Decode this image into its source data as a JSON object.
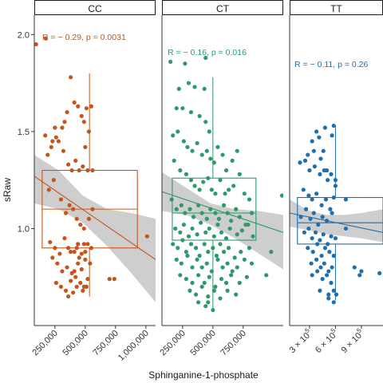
{
  "chart_data": {
    "type": "scatter",
    "ylabel": "sRaw",
    "xlabel": "Sphinganine-1-phosphate",
    "ylim": [
      0.5,
      2.1
    ],
    "yticks": [
      1.0,
      1.5,
      2.0
    ],
    "ytick_labels": [
      "1.0",
      "1.5",
      "2.0"
    ],
    "grid": false,
    "panels": [
      {
        "strip": "CC",
        "color": "#c4561d",
        "annotation": "R = − 0.29, p = 0.0031",
        "xlim": [
          80000,
          1080000
        ],
        "xticks": [
          250000,
          500000,
          750000,
          1000000
        ],
        "xtick_labels": [
          "250,000",
          "500,000",
          "750,000",
          "1,000,000"
        ],
        "box": {
          "x_min": 145000,
          "x_max": 930000,
          "q1": 0.9,
          "median": 1.1,
          "q3": 1.3,
          "whisker_low": 0.65,
          "whisker_high": 1.8,
          "whisker_x": 535000
        },
        "fit": {
          "x": [
            80000,
            1080000
          ],
          "y": [
            1.27,
            0.84
          ]
        },
        "band": {
          "x": [
            80000,
            280000,
            480000,
            680000,
            880000,
            1080000
          ],
          "lower": [
            1.13,
            1.1,
            1.03,
            0.91,
            0.77,
            0.62
          ],
          "upper": [
            1.38,
            1.3,
            1.17,
            1.1,
            1.08,
            1.05
          ]
        },
        "points": {
          "x": [
            95000,
            175000,
            220000,
            260000,
            310000,
            330000,
            350000,
            380000,
            410000,
            440000,
            470000,
            490000,
            510000,
            530000,
            550000,
            170000,
            190000,
            230000,
            250000,
            280000,
            320000,
            360000,
            390000,
            420000,
            450000,
            480000,
            500000,
            520000,
            560000,
            200000,
            240000,
            300000,
            340000,
            370000,
            400000,
            430000,
            460000,
            490000,
            530000,
            560000,
            210000,
            250000,
            290000,
            330000,
            360000,
            380000,
            410000,
            430000,
            450000,
            470000,
            500000,
            520000,
            550000,
            700000,
            740000,
            230000,
            270000,
            310000,
            350000,
            390000,
            420000,
            440000,
            470000,
            500000,
            540000,
            1010000,
            260000,
            300000,
            340000,
            380000,
            410000,
            460000,
            490000,
            520000,
            360000,
            400000,
            430000,
            480000,
            510000,
            440000,
            490000
          ],
          "y": [
            1.95,
            1.98,
            1.42,
            1.47,
            1.52,
            1.55,
            1.6,
            1.78,
            1.65,
            1.63,
            1.58,
            1.55,
            1.62,
            1.5,
            1.63,
            1.48,
            1.38,
            1.45,
            1.52,
            1.45,
            1.4,
            1.33,
            1.3,
            1.35,
            1.3,
            1.32,
            1.42,
            1.3,
            1.3,
            1.2,
            1.25,
            1.15,
            1.08,
            1.12,
            1.1,
            1.05,
            1.02,
            1.0,
            1.05,
            1.1,
            0.93,
            0.9,
            0.87,
            0.95,
            0.9,
            0.88,
            0.88,
            0.9,
            0.85,
            0.87,
            0.88,
            0.92,
            0.9,
            0.74,
            0.74,
            0.85,
            0.82,
            0.78,
            0.8,
            0.77,
            0.75,
            0.82,
            0.79,
            0.84,
            0.82,
            0.96,
            0.72,
            0.7,
            0.68,
            0.73,
            0.78,
            0.72,
            0.7,
            0.74,
            0.65,
            0.67,
            0.7,
            0.68,
            0.7,
            0.92,
            0.92
          ]
        }
      },
      {
        "strip": "CT",
        "color": "#2e9a6b",
        "annotation": "R = − 0.16, p = 0.016",
        "xlim": [
          80000,
          1080000
        ],
        "xticks": [
          250000,
          500000,
          750000
        ],
        "xtick_labels": [
          "250,000",
          "500,000",
          "750,000"
        ],
        "box": {
          "x_min": 165000,
          "x_max": 855000,
          "q1": 0.94,
          "median": 1.08,
          "q3": 1.26,
          "whisker_low": 0.58,
          "whisker_high": 1.78,
          "whisker_x": 500000
        },
        "fit": {
          "x": [
            80000,
            1080000
          ],
          "y": [
            1.19,
            0.98
          ]
        },
        "band": {
          "x": [
            80000,
            280000,
            480000,
            680000,
            880000,
            1080000
          ],
          "lower": [
            1.09,
            1.07,
            1.02,
            0.95,
            0.87,
            0.79
          ],
          "upper": [
            1.29,
            1.21,
            1.13,
            1.1,
            1.09,
            1.07
          ]
        },
        "points": {
          "x": [
            440000,
            270000,
            150000,
            220000,
            300000,
            350000,
            430000,
            200000,
            250000,
            320000,
            390000,
            440000,
            470000,
            170000,
            210000,
            260000,
            290000,
            330000,
            370000,
            410000,
            450000,
            480000,
            510000,
            540000,
            580000,
            610000,
            660000,
            700000,
            720000,
            180000,
            230000,
            280000,
            320000,
            350000,
            390000,
            420000,
            460000,
            490000,
            520000,
            560000,
            600000,
            630000,
            670000,
            760000,
            800000,
            160000,
            200000,
            240000,
            270000,
            310000,
            340000,
            380000,
            410000,
            450000,
            480000,
            520000,
            550000,
            590000,
            620000,
            650000,
            690000,
            720000,
            770000,
            820000,
            1070000,
            190000,
            230000,
            260000,
            300000,
            330000,
            370000,
            400000,
            440000,
            470000,
            510000,
            540000,
            570000,
            610000,
            640000,
            700000,
            740000,
            790000,
            830000,
            170000,
            210000,
            250000,
            280000,
            320000,
            360000,
            390000,
            430000,
            460000,
            500000,
            530000,
            560000,
            590000,
            630000,
            680000,
            730000,
            800000,
            980000,
            200000,
            240000,
            290000,
            330000,
            370000,
            410000,
            450000,
            490000,
            540000,
            580000,
            620000,
            660000,
            700000,
            760000,
            820000,
            230000,
            280000,
            330000,
            380000,
            430000,
            470000,
            520000,
            570000,
            610000,
            650000,
            720000,
            780000,
            940000,
            310000,
            360000,
            410000,
            460000,
            510000,
            560000,
            620000,
            690000,
            380000,
            440000,
            500000,
            460000
          ],
          "y": [
            1.88,
            1.85,
            1.86,
            1.72,
            1.75,
            1.73,
            1.72,
            1.62,
            1.62,
            1.6,
            1.58,
            1.55,
            1.5,
            1.48,
            1.5,
            1.45,
            1.42,
            1.4,
            1.44,
            1.38,
            1.4,
            1.36,
            1.34,
            1.42,
            1.38,
            1.3,
            1.35,
            1.4,
            1.28,
            1.35,
            1.3,
            1.28,
            1.25,
            1.22,
            1.2,
            1.24,
            1.26,
            1.2,
            1.18,
            1.25,
            1.18,
            1.2,
            1.22,
            1.18,
            1.15,
            1.15,
            1.1,
            1.12,
            1.08,
            1.1,
            1.06,
            1.12,
            1.08,
            1.05,
            1.1,
            1.08,
            1.05,
            1.12,
            1.08,
            1.04,
            1.1,
            1.06,
            1.02,
            1.08,
            1.17,
            1.0,
            0.98,
            1.02,
            0.96,
            1.0,
            0.97,
            1.03,
            0.98,
            1.0,
            0.96,
            1.02,
            0.98,
            0.95,
            1.0,
            0.97,
            0.99,
            1.02,
            0.96,
            0.92,
            0.9,
            0.94,
            0.88,
            0.92,
            0.9,
            0.86,
            0.92,
            0.88,
            0.9,
            0.86,
            0.92,
            0.88,
            0.9,
            0.85,
            0.88,
            0.9,
            0.88,
            0.84,
            0.82,
            0.86,
            0.8,
            0.84,
            0.8,
            0.82,
            0.78,
            0.84,
            0.8,
            0.82,
            0.78,
            0.8,
            0.84,
            0.82,
            0.76,
            0.74,
            0.72,
            0.76,
            0.72,
            0.75,
            0.7,
            0.74,
            0.72,
            0.76,
            0.72,
            0.75,
            0.76,
            0.68,
            0.66,
            0.7,
            0.65,
            0.68,
            0.64,
            0.68,
            0.66,
            0.62,
            0.6,
            0.58,
            0.62
          ]
        }
      },
      {
        "strip": "TT",
        "color": "#1f6fae",
        "annotation": "R = − 0.11, p = 0.26",
        "xlim": [
          70000,
          1150000
        ],
        "xticks": [
          300000,
          600000,
          900000
        ],
        "xtick_labels": [
          "3 × 10",
          "6 × 10",
          "9 × 10"
        ],
        "xtick_exponent": "5",
        "box": {
          "x_min": 160000,
          "x_max": 1150000,
          "q1": 0.92,
          "median": 1.03,
          "q3": 1.16,
          "whisker_low": 0.63,
          "whisker_high": 1.53,
          "whisker_x": 600000
        },
        "fit": {
          "x": [
            70000,
            1150000
          ],
          "y": [
            1.08,
            0.98
          ]
        },
        "band": {
          "x": [
            70000,
            300000,
            500000,
            700000,
            900000,
            1150000
          ],
          "lower": [
            1.01,
            0.99,
            0.97,
            0.96,
            0.95,
            0.93
          ],
          "upper": [
            1.15,
            1.09,
            1.07,
            1.07,
            1.08,
            1.1
          ]
        },
        "points": {
          "x": [
            380000,
            480000,
            560000,
            580000,
            330000,
            410000,
            460000,
            280000,
            350000,
            430000,
            500000,
            600000,
            190000,
            250000,
            300000,
            360000,
            420000,
            470000,
            510000,
            550000,
            600000,
            230000,
            290000,
            330000,
            380000,
            440000,
            490000,
            540000,
            580000,
            200000,
            260000,
            310000,
            350000,
            400000,
            450000,
            500000,
            560000,
            720000,
            240000,
            290000,
            330000,
            370000,
            420000,
            460000,
            510000,
            550000,
            600000,
            280000,
            340000,
            390000,
            440000,
            480000,
            530000,
            580000,
            320000,
            380000,
            430000,
            470000,
            520000,
            560000,
            330000,
            390000,
            450000,
            500000,
            550000,
            420000,
            520000,
            580000,
            610000,
            720000,
            820000,
            880000,
            900000,
            1110000,
            520000,
            580000
          ],
          "y": [
            1.5,
            1.52,
            1.48,
            1.53,
            1.45,
            1.47,
            1.4,
            1.38,
            1.4,
            1.36,
            1.3,
            1.25,
            1.34,
            1.35,
            1.3,
            1.32,
            1.28,
            1.3,
            1.25,
            1.28,
            1.22,
            1.2,
            1.17,
            1.15,
            1.18,
            1.12,
            1.15,
            1.1,
            1.16,
            1.06,
            1.1,
            1.05,
            1.08,
            1.02,
            1.06,
            1.04,
            1.08,
            1.15,
            0.98,
            1.0,
            0.95,
            0.98,
            0.94,
            0.97,
            0.92,
            0.96,
            0.95,
            0.9,
            0.88,
            0.92,
            0.86,
            0.9,
            0.88,
            0.86,
            0.82,
            0.84,
            0.8,
            0.82,
            0.78,
            0.8,
            0.76,
            0.78,
            0.74,
            0.76,
            0.72,
            0.68,
            0.64,
            0.68,
            0.66,
            1.0,
            0.8,
            0.76,
            0.78,
            0.77,
            0.66,
            0.62
          ]
        }
      }
    ]
  }
}
